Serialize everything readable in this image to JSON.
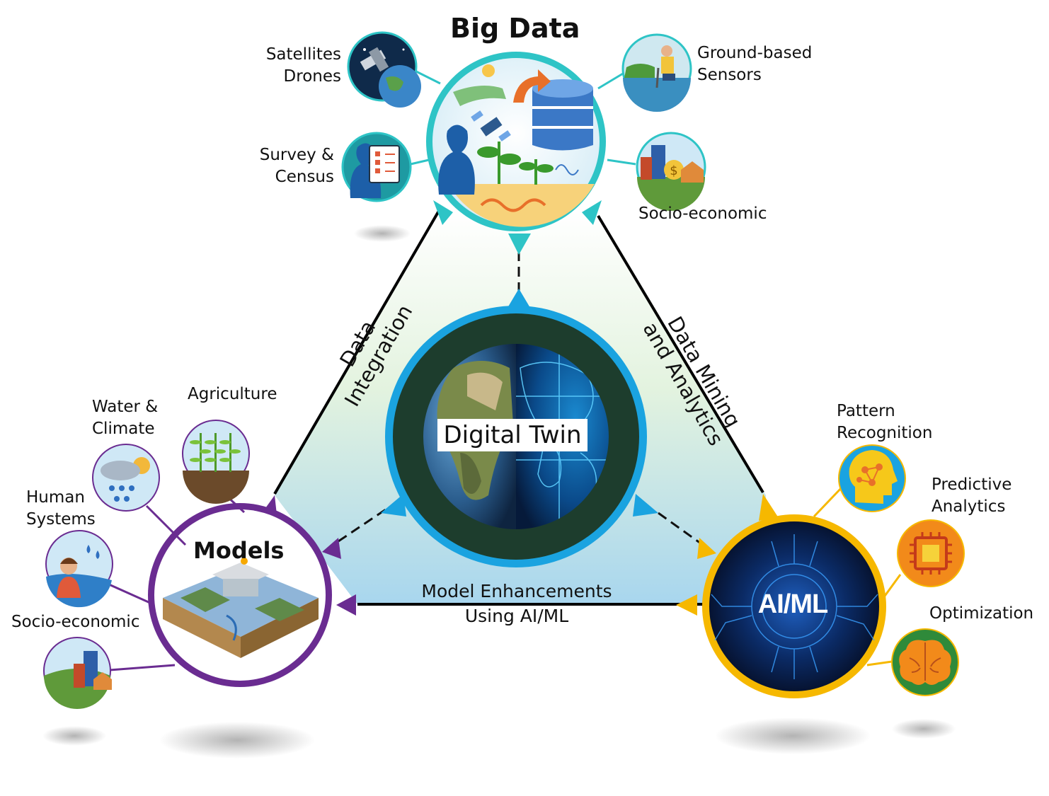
{
  "big_data": {
    "title": "Big Data",
    "sources": {
      "satellites": [
        "Satellites",
        "Drones"
      ],
      "survey": [
        "Survey &",
        "Census"
      ],
      "ground": [
        "Ground-based",
        "Sensors"
      ],
      "socio": "Socio-economic"
    }
  },
  "models": {
    "title": "Models",
    "sources": {
      "water": [
        "Water &",
        "Climate"
      ],
      "agriculture": "Agriculture",
      "human": [
        "Human",
        "Systems"
      ],
      "socio": "Socio-economic"
    }
  },
  "aiml": {
    "title": "AI/ML",
    "functions": {
      "pattern": [
        "Pattern",
        "Recognition"
      ],
      "predictive": [
        "Predictive",
        "Analytics"
      ],
      "optimization": "Optimization"
    }
  },
  "center": {
    "title": "Digital Twin"
  },
  "edges": {
    "left": [
      "Data",
      "Integration"
    ],
    "right": [
      "Data Mining",
      "and Analytics"
    ],
    "bottom": [
      "Model Enhancements",
      "Using AI/ML"
    ]
  },
  "colors": {
    "big_data": "#2ec4c6",
    "models": "#6a2c91",
    "aiml": "#f6b800",
    "center": "#1aa3e0",
    "center_fill": "#1d3d2d"
  }
}
